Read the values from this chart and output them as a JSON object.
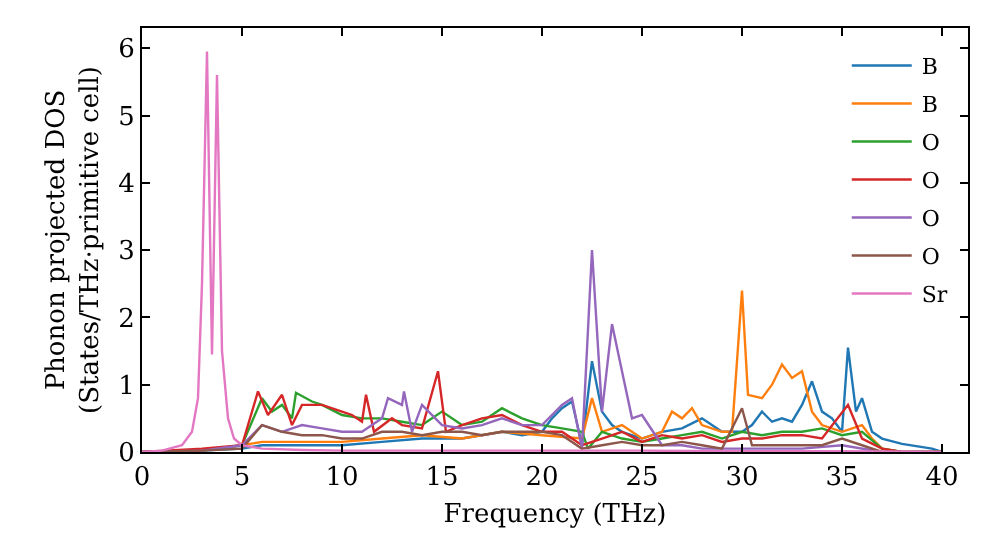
{
  "chart_data": {
    "type": "line",
    "xlabel": "Frequency (THz)",
    "ylabel": "Phonon projected DOS\n(States/THz·primitive cell)",
    "xlim": [
      0,
      41.3
    ],
    "ylim": [
      0,
      6.3
    ],
    "xticks": [
      0,
      5,
      10,
      15,
      20,
      25,
      30,
      35,
      40
    ],
    "yticks": [
      0,
      1,
      2,
      3,
      4,
      5,
      6
    ],
    "legend": "top right",
    "series": [
      {
        "name": "B",
        "color": "#1f77b4",
        "x": [
          0,
          3,
          5,
          6,
          8,
          10,
          12,
          14,
          16,
          18,
          19,
          20,
          20.5,
          21,
          21.5,
          22,
          22.5,
          23,
          23.5,
          24,
          25,
          26,
          27,
          28,
          29,
          30,
          30.5,
          31,
          31.5,
          32,
          32.5,
          33,
          33.5,
          34,
          34.5,
          35,
          35.3,
          35.7,
          36,
          36.5,
          37,
          38,
          39.5,
          40
        ],
        "values": [
          0,
          0.02,
          0.05,
          0.1,
          0.1,
          0.1,
          0.15,
          0.2,
          0.2,
          0.3,
          0.25,
          0.3,
          0.5,
          0.65,
          0.75,
          0.1,
          1.35,
          0.6,
          0.4,
          0.3,
          0.2,
          0.3,
          0.35,
          0.5,
          0.3,
          0.3,
          0.4,
          0.6,
          0.45,
          0.5,
          0.45,
          0.7,
          1.05,
          0.6,
          0.5,
          0.3,
          1.55,
          0.6,
          0.8,
          0.3,
          0.2,
          0.12,
          0.05,
          0
        ]
      },
      {
        "name": "B",
        "color": "#ff7f0e",
        "x": [
          0,
          3,
          5,
          6,
          8,
          10,
          12,
          14,
          16,
          18,
          20,
          22,
          22.5,
          23,
          24,
          25,
          26,
          26.5,
          27,
          27.5,
          28,
          29,
          29.5,
          30,
          30.3,
          31,
          31.5,
          32,
          32.5,
          33,
          33.5,
          34,
          35,
          36,
          36.5,
          37,
          38,
          40
        ],
        "values": [
          0,
          0.02,
          0.1,
          0.15,
          0.15,
          0.15,
          0.2,
          0.25,
          0.2,
          0.3,
          0.25,
          0.2,
          0.8,
          0.3,
          0.4,
          0.2,
          0.3,
          0.6,
          0.5,
          0.65,
          0.4,
          0.3,
          0.3,
          2.4,
          0.85,
          0.8,
          1.0,
          1.3,
          1.1,
          1.2,
          0.6,
          0.4,
          0.3,
          0.4,
          0.2,
          0.05,
          0,
          0
        ]
      },
      {
        "name": "O",
        "color": "#2ca02c",
        "x": [
          0,
          3,
          5,
          6,
          6.5,
          7,
          7.5,
          7.7,
          8.5,
          9,
          10,
          11,
          12,
          13,
          14,
          15,
          16,
          17,
          18,
          19,
          20,
          21,
          22,
          22.3,
          23,
          24,
          25,
          26,
          27,
          28,
          29,
          30,
          31,
          32,
          33,
          34,
          35,
          36,
          37,
          38,
          40
        ],
        "values": [
          0,
          0.02,
          0.1,
          0.8,
          0.6,
          0.7,
          0.5,
          0.88,
          0.75,
          0.7,
          0.55,
          0.5,
          0.5,
          0.45,
          0.4,
          0.6,
          0.4,
          0.45,
          0.65,
          0.5,
          0.4,
          0.35,
          0.3,
          0.05,
          0.3,
          0.2,
          0.15,
          0.2,
          0.25,
          0.3,
          0.2,
          0.3,
          0.25,
          0.3,
          0.3,
          0.35,
          0.25,
          0.3,
          0.05,
          0,
          0
        ]
      },
      {
        "name": "O",
        "color": "#d62728",
        "x": [
          0,
          3,
          5,
          5.8,
          6.3,
          7,
          7.5,
          8,
          9,
          10,
          10.5,
          11,
          11.2,
          11.6,
          12.5,
          13,
          14,
          14.8,
          15.2,
          16,
          17,
          18,
          19,
          20,
          21,
          22,
          23,
          24,
          25,
          26,
          27,
          28,
          29,
          30,
          31,
          32,
          33,
          34,
          35.3,
          36,
          37,
          38,
          40
        ],
        "values": [
          0,
          0.05,
          0.1,
          0.9,
          0.55,
          0.85,
          0.4,
          0.7,
          0.7,
          0.6,
          0.55,
          0.45,
          0.85,
          0.3,
          0.5,
          0.4,
          0.35,
          1.2,
          0.3,
          0.4,
          0.5,
          0.55,
          0.4,
          0.3,
          0.3,
          0.1,
          0.2,
          0.3,
          0.15,
          0.25,
          0.2,
          0.25,
          0.15,
          0.2,
          0.2,
          0.25,
          0.25,
          0.2,
          0.7,
          0.2,
          0.05,
          0,
          0
        ]
      },
      {
        "name": "O",
        "color": "#9467bd",
        "x": [
          0,
          3,
          5,
          6,
          7,
          8,
          9,
          10,
          11,
          12,
          12.3,
          13,
          13.1,
          13.5,
          14,
          15,
          16,
          17,
          18,
          19,
          20,
          21,
          21.5,
          22,
          22.5,
          23,
          23.5,
          24,
          24.5,
          25,
          26,
          27,
          28,
          29,
          30,
          31,
          32,
          33,
          35,
          37,
          40
        ],
        "values": [
          0,
          0.02,
          0.1,
          0.4,
          0.3,
          0.4,
          0.35,
          0.3,
          0.3,
          0.5,
          0.8,
          0.7,
          0.9,
          0.3,
          0.7,
          0.4,
          0.35,
          0.4,
          0.5,
          0.4,
          0.4,
          0.7,
          0.8,
          0.05,
          3.0,
          0.6,
          1.9,
          1.2,
          0.5,
          0.55,
          0.1,
          0.1,
          0.05,
          0.05,
          0.05,
          0.05,
          0.05,
          0.05,
          0.1,
          0,
          0
        ]
      },
      {
        "name": "O",
        "color": "#8c564b",
        "x": [
          0,
          3,
          5,
          6,
          7,
          8,
          9,
          10,
          11,
          12,
          13,
          14,
          15,
          16,
          17,
          18,
          19,
          20,
          21,
          22,
          23,
          24,
          25,
          26,
          27,
          28,
          29,
          30,
          30.5,
          32,
          34,
          35,
          36,
          37,
          40
        ],
        "values": [
          0,
          0.02,
          0.05,
          0.4,
          0.3,
          0.25,
          0.25,
          0.2,
          0.2,
          0.3,
          0.3,
          0.25,
          0.3,
          0.3,
          0.25,
          0.3,
          0.3,
          0.3,
          0.25,
          0.05,
          0.1,
          0.15,
          0.1,
          0.1,
          0.15,
          0.1,
          0.05,
          0.65,
          0.1,
          0.1,
          0.1,
          0.2,
          0.1,
          0,
          0
        ]
      },
      {
        "name": "Sr",
        "color": "#e377c2",
        "x": [
          0,
          1,
          2,
          2.5,
          2.8,
          3.0,
          3.25,
          3.5,
          3.75,
          4.0,
          4.3,
          4.6,
          5,
          6,
          8,
          10,
          15,
          20,
          25,
          30,
          35,
          40
        ],
        "values": [
          0,
          0.02,
          0.1,
          0.3,
          0.8,
          2.5,
          5.95,
          1.45,
          5.6,
          1.5,
          0.5,
          0.2,
          0.1,
          0.05,
          0.03,
          0.02,
          0.02,
          0.02,
          0.02,
          0.01,
          0.01,
          0
        ]
      }
    ]
  }
}
